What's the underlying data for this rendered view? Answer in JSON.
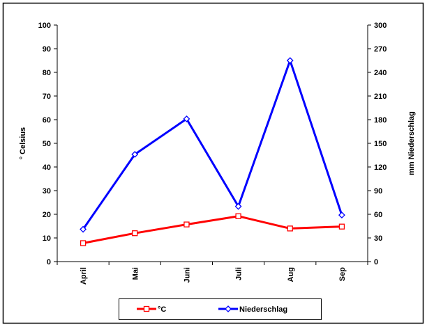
{
  "chart_data": {
    "type": "line",
    "categories": [
      "April",
      "Mai",
      "Juni",
      "Juli",
      "Aug",
      "Sep"
    ],
    "ylabel_left": "° Celsius",
    "ylabel_right": "mm Niederschlag",
    "ylim_left": [
      0,
      100
    ],
    "yticks_left": [
      0,
      10,
      20,
      30,
      40,
      50,
      60,
      70,
      80,
      90,
      100
    ],
    "ylim_right": [
      0,
      300
    ],
    "yticks_right": [
      0,
      30,
      60,
      90,
      120,
      150,
      180,
      210,
      240,
      270,
      300
    ],
    "grid": false,
    "legend_position": "bottom",
    "series": [
      {
        "name": "°C",
        "axis": "left",
        "color": "#ff0000",
        "marker": "square",
        "values": [
          7.8,
          12.0,
          15.7,
          19.2,
          14.0,
          14.8
        ]
      },
      {
        "name": "Niederschlag",
        "axis": "right",
        "color": "#0000ff",
        "marker": "diamond",
        "values": [
          41,
          136,
          181,
          70,
          255,
          59
        ]
      }
    ]
  }
}
